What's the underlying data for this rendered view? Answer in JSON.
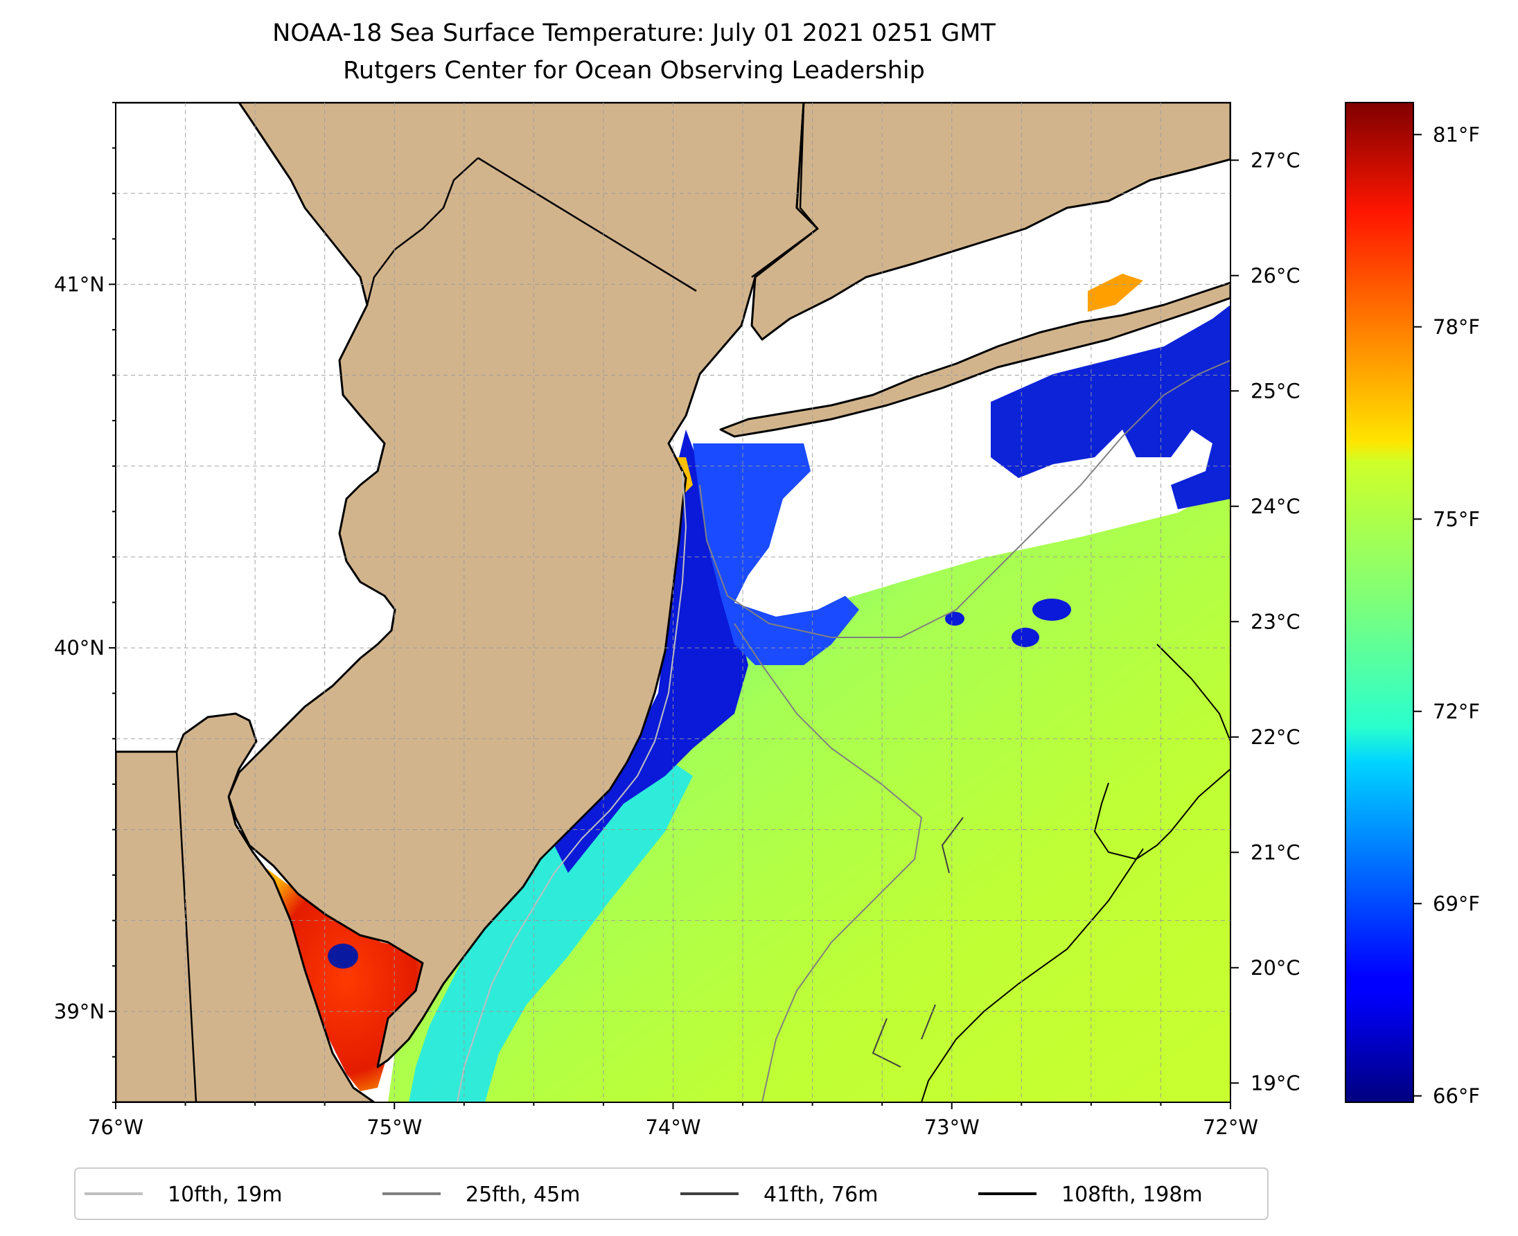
{
  "title_line1": "NOAA-18 Sea Surface Temperature: July 01 2021 0251 GMT",
  "title_line2": "Rutgers Center for Ocean Observing Leadership",
  "map": {
    "lon_range": [
      -76,
      -72
    ],
    "lat_range": [
      38.75,
      41.5
    ],
    "x_ticks": [
      "76°W",
      "75°W",
      "74°W",
      "73°W",
      "72°W"
    ],
    "y_ticks": [
      "41°N",
      "40°N",
      "39°N"
    ],
    "grid": "dashed",
    "land_color": "#d2b48c",
    "no_data_color": "#ffffff"
  },
  "colorbar": {
    "colormap": "jet",
    "celsius_ticks": [
      "27°C",
      "26°C",
      "25°C",
      "24°C",
      "23°C",
      "22°C",
      "21°C",
      "20°C",
      "19°C"
    ],
    "fahrenheit_ticks": [
      "81°F",
      "78°F",
      "75°F",
      "72°F",
      "69°F",
      "66°F"
    ],
    "range_f": [
      65.9,
      81.5
    ]
  },
  "legend": {
    "placement": "bottom",
    "items": [
      {
        "label": "10fth, 19m",
        "color": "#c0c0c0"
      },
      {
        "label": "25fth, 45m",
        "color": "#808080"
      },
      {
        "label": "41fth, 76m",
        "color": "#404040"
      },
      {
        "label": "108fth, 198m",
        "color": "#000000"
      }
    ]
  }
}
